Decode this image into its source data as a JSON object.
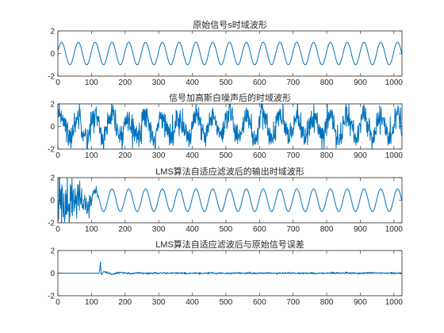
{
  "chart_data": [
    {
      "type": "line",
      "title": "原始信号s时域波形",
      "xlabel": "",
      "ylabel": "",
      "xlim": [
        0,
        1024
      ],
      "ylim": [
        -2,
        2
      ],
      "xticks": [
        "0",
        "100",
        "200",
        "300",
        "400",
        "500",
        "600",
        "700",
        "800",
        "900",
        "1000"
      ],
      "yticks": [
        "2",
        "0",
        "-2"
      ],
      "grid": false,
      "series": [
        {
          "color": "#0072BD",
          "signal": {
            "kind": "sine",
            "amplitude": 1,
            "period": 50,
            "phase": 0.2
          }
        }
      ]
    },
    {
      "type": "line",
      "title": "信号加高斯白噪声后的时域波形",
      "xlabel": "",
      "ylabel": "",
      "xlim": [
        0,
        1024
      ],
      "ylim": [
        -2,
        2
      ],
      "xticks": [
        "0",
        "100",
        "200",
        "300",
        "400",
        "500",
        "600",
        "700",
        "800",
        "900",
        "1000"
      ],
      "yticks": [
        "2",
        "0",
        "-2"
      ],
      "grid": false,
      "series": [
        {
          "color": "#0072BD",
          "signal": {
            "kind": "sine_plus_noise",
            "amplitude": 1,
            "period": 50,
            "phase": 0.2,
            "noise_std": 0.6
          }
        }
      ]
    },
    {
      "type": "line",
      "title": "LMS算法自适应滤波后的输出时域波形",
      "xlabel": "",
      "ylabel": "",
      "xlim": [
        0,
        1024
      ],
      "ylim": [
        -2,
        2
      ],
      "xticks": [
        "0",
        "100",
        "200",
        "300",
        "400",
        "500",
        "600",
        "700",
        "800",
        "900",
        "1000"
      ],
      "yticks": [
        "2",
        "0",
        "-2"
      ],
      "grid": false,
      "series": [
        {
          "color": "#0072BD",
          "signal": {
            "kind": "lms_output",
            "amplitude": 1,
            "period": 50,
            "phase": 0.2,
            "transient_end": 130,
            "transient_std": 1.5
          }
        }
      ]
    },
    {
      "type": "line",
      "title": "LMS算法自适应滤波后与原始信号误差",
      "xlabel": "",
      "ylabel": "",
      "xlim": [
        0,
        1024
      ],
      "ylim": [
        -2,
        2
      ],
      "xticks": [
        "0",
        "100",
        "200",
        "300",
        "400",
        "500",
        "600",
        "700",
        "800",
        "900",
        "1000"
      ],
      "yticks": [
        "2",
        "0",
        "-2"
      ],
      "grid": false,
      "series": [
        {
          "color": "#0072BD",
          "signal": {
            "kind": "lms_error",
            "zero_until": 124,
            "spike_at": 127,
            "spike_value": 1.0,
            "residual_std": 0.04
          }
        }
      ]
    }
  ]
}
